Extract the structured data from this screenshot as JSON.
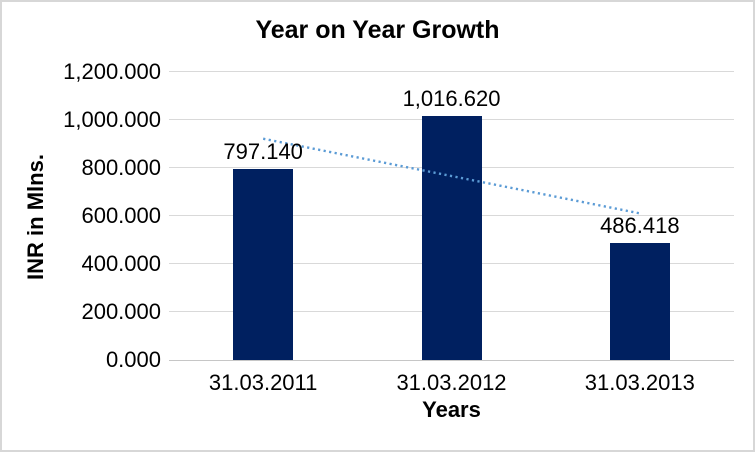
{
  "window": {
    "background": "#ffffff",
    "border_color": "#d7d7d7"
  },
  "chart_data": {
    "type": "bar",
    "title": "Year on Year Growth",
    "xlabel": "Years",
    "ylabel": "INR in Mlns.",
    "categories": [
      "31.03.2011",
      "31.03.2012",
      "31.03.2013"
    ],
    "values": [
      797.14,
      1016.62,
      486.418
    ],
    "data_labels": [
      "797.140",
      "1,016.620",
      "486.418"
    ],
    "ylim": [
      0,
      1200
    ],
    "ytick_step": 200,
    "ytick_labels": [
      "0.000",
      "200.000",
      "400.000",
      "600.000",
      "800.000",
      "1,000.000",
      "1,200.000"
    ],
    "grid": true,
    "legend": "none",
    "bar_color": "#002060",
    "gridline_color": "#d9d9d9",
    "axis_line_color": "#c6c6c6",
    "text_color": "#000000",
    "trendline": {
      "type": "linear",
      "style": "dotted",
      "color": "#5b9bd5",
      "start_value": 922,
      "end_value": 611
    }
  }
}
